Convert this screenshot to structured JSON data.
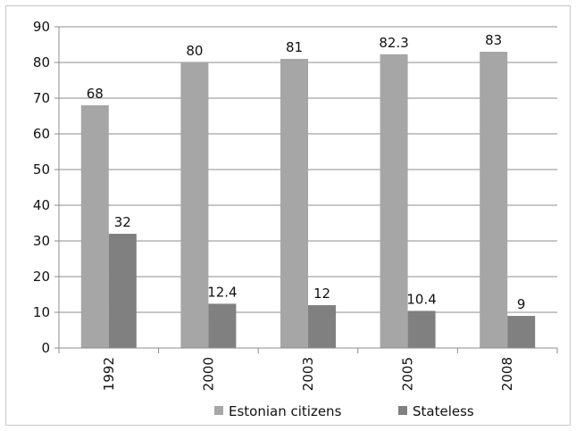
{
  "chart_data": {
    "type": "bar",
    "categories": [
      "1992",
      "2000",
      "2003",
      "2005",
      "2008"
    ],
    "series": [
      {
        "name": "Estonian citizens",
        "values": [
          68,
          80,
          81,
          82.3,
          83
        ],
        "labels": [
          "68",
          "80",
          "81",
          "82.3",
          "83"
        ],
        "color": "#a6a6a6"
      },
      {
        "name": "Stateless",
        "values": [
          32,
          12.4,
          12,
          10.4,
          9
        ],
        "labels": [
          "32",
          "12.4",
          "12",
          "10.4",
          "9"
        ],
        "color": "#808080"
      }
    ],
    "ylim": [
      0,
      90
    ],
    "yticks": [
      "0",
      "10",
      "20",
      "30",
      "40",
      "50",
      "60",
      "70",
      "80",
      "90"
    ],
    "grid": true,
    "legend_position": "bottom"
  }
}
